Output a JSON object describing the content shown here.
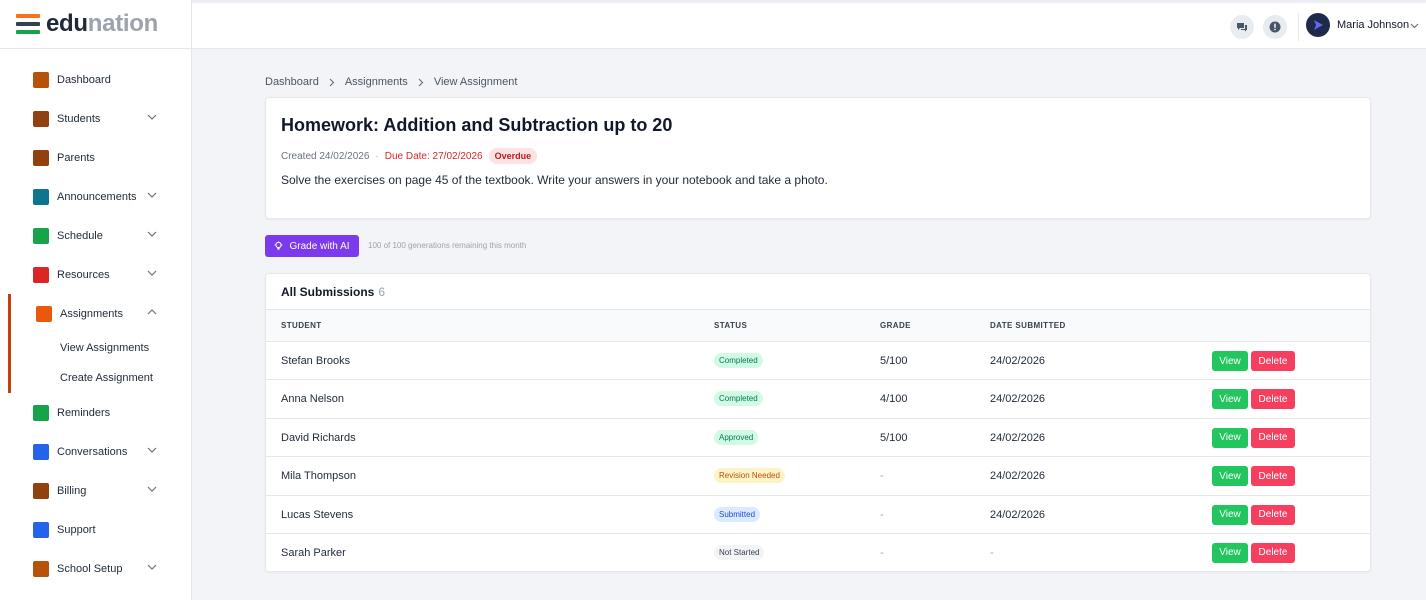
{
  "brand": {
    "name_primary": "edu",
    "name_secondary": "nation",
    "stripe_colors": [
      "#f97316",
      "#334155",
      "#16a34a"
    ]
  },
  "sidebar": {
    "items": [
      {
        "label": "Dashboard",
        "icon": "dashboard-icon",
        "color": "#b45309",
        "chevron": false
      },
      {
        "label": "Students",
        "icon": "student-icon",
        "color": "#92400e",
        "chevron": true
      },
      {
        "label": "Parents",
        "icon": "parent-icon",
        "color": "#92400e",
        "chevron": false
      },
      {
        "label": "Announcements",
        "icon": "megaphone-icon",
        "color": "#0e7490",
        "chevron": true
      },
      {
        "label": "Schedule",
        "icon": "schedule-icon",
        "color": "#16a34a",
        "chevron": true
      },
      {
        "label": "Resources",
        "icon": "resources-icon",
        "color": "#dc2626",
        "chevron": true
      },
      {
        "label": "Assignments",
        "icon": "assignment-icon",
        "color": "#ea580c",
        "chevron": true,
        "active": true
      },
      {
        "label": "Reminders",
        "icon": "reminder-icon",
        "color": "#16a34a",
        "chevron": false
      },
      {
        "label": "Conversations",
        "icon": "conversation-icon",
        "color": "#2563eb",
        "chevron": true
      },
      {
        "label": "Billing",
        "icon": "billing-icon",
        "color": "#92400e",
        "chevron": true
      },
      {
        "label": "Support",
        "icon": "support-icon",
        "color": "#2563eb",
        "chevron": false
      },
      {
        "label": "School Setup",
        "icon": "gear-icon",
        "color": "#b45309",
        "chevron": true
      }
    ],
    "assignments_sub": [
      "View Assignments",
      "Create Assignment"
    ]
  },
  "header": {
    "user_name": "Maria Johnson"
  },
  "breadcrumb": [
    "Dashboard",
    "Assignments",
    "View Assignment"
  ],
  "assignment": {
    "title": "Homework: Addition and Subtraction up to 20",
    "created": "Created 24/02/2026",
    "separator": "·",
    "due": "Due Date: 27/02/2026",
    "overdue_badge": "Overdue",
    "description": "Solve the exercises on page 45 of the textbook. Write your answers in your notebook and take a photo."
  },
  "ai": {
    "button_label": "Grade with AI",
    "note": "100 of 100 generations remaining this month"
  },
  "submissions": {
    "title": "All Submissions",
    "count": "6",
    "columns": [
      "STUDENT",
      "STATUS",
      "GRADE",
      "DATE SUBMITTED"
    ],
    "view_label": "View",
    "delete_label": "Delete",
    "rows": [
      {
        "student": "Stefan Brooks",
        "status": "Completed",
        "grade": "5/100",
        "date": "24/02/2026"
      },
      {
        "student": "Anna Nelson",
        "status": "Completed",
        "grade": "4/100",
        "date": "24/02/2026"
      },
      {
        "student": "David Richards",
        "status": "Approved",
        "grade": "5/100",
        "date": "24/02/2026"
      },
      {
        "student": "Mila Thompson",
        "status": "Revision Needed",
        "grade": "-",
        "date": "24/02/2026"
      },
      {
        "student": "Lucas Stevens",
        "status": "Submitted",
        "grade": "-",
        "date": "24/02/2026"
      },
      {
        "student": "Sarah Parker",
        "status": "Not Started",
        "grade": "-",
        "date": "-"
      }
    ],
    "status_colors": {
      "Completed": {
        "bg": "#d1fae5",
        "fg": "#047857"
      },
      "Approved": {
        "bg": "#d1fae5",
        "fg": "#047857"
      },
      "Revision Needed": {
        "bg": "#fef3c7",
        "fg": "#b45309"
      },
      "Submitted": {
        "bg": "#dbeafe",
        "fg": "#1d4ed8"
      },
      "Not Started": {
        "bg": "#f3f4f6",
        "fg": "#374151"
      }
    }
  }
}
